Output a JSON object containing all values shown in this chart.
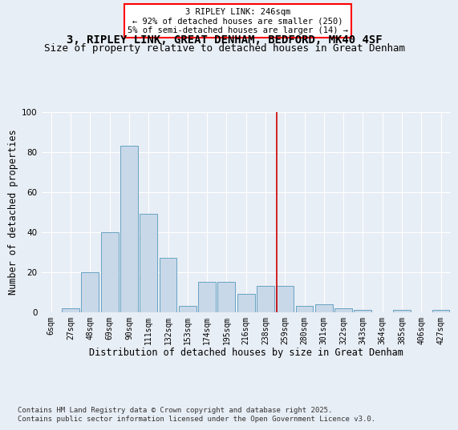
{
  "title_line1": "3, RIPLEY LINK, GREAT DENHAM, BEDFORD, MK40 4SF",
  "title_line2": "Size of property relative to detached houses in Great Denham",
  "xlabel": "Distribution of detached houses by size in Great Denham",
  "ylabel": "Number of detached properties",
  "categories": [
    "6sqm",
    "27sqm",
    "48sqm",
    "69sqm",
    "90sqm",
    "111sqm",
    "132sqm",
    "153sqm",
    "174sqm",
    "195sqm",
    "216sqm",
    "238sqm",
    "259sqm",
    "280sqm",
    "301sqm",
    "322sqm",
    "343sqm",
    "364sqm",
    "385sqm",
    "406sqm",
    "427sqm"
  ],
  "bar_heights": [
    0,
    2,
    20,
    40,
    83,
    49,
    27,
    3,
    15,
    15,
    9,
    13,
    13,
    3,
    4,
    2,
    1,
    0,
    1,
    0,
    1
  ],
  "bar_color": "#c8d8e8",
  "bar_edge_color": "#5599bb",
  "vline_x": 11.57,
  "vline_color": "#cc0000",
  "annotation_text": "3 RIPLEY LINK: 246sqm\n← 92% of detached houses are smaller (250)\n5% of semi-detached houses are larger (14) →",
  "ylim": [
    0,
    100
  ],
  "yticks": [
    0,
    20,
    40,
    60,
    80,
    100
  ],
  "background_color": "#e8eef5",
  "footer_line1": "Contains HM Land Registry data © Crown copyright and database right 2025.",
  "footer_line2": "Contains public sector information licensed under the Open Government Licence v3.0.",
  "title_fontsize": 10,
  "subtitle_fontsize": 9,
  "axis_label_fontsize": 8.5,
  "tick_fontsize": 7,
  "annotation_fontsize": 7.5,
  "footer_fontsize": 6.5
}
